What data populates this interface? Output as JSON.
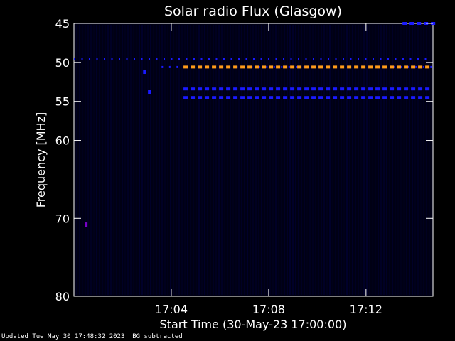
{
  "chart_data": {
    "type": "heatmap",
    "title": "Solar radio Flux (Glasgow)",
    "ylabel": "Frequency [MHz]",
    "xlabel": "Start Time (30-May-23 17:00:00)",
    "y_reversed": true,
    "ylim": [
      45,
      80
    ],
    "yticks": [
      45,
      50,
      55,
      60,
      70,
      80
    ],
    "xlim_minutes": [
      0,
      14.75
    ],
    "xticks": [
      {
        "minute": 4,
        "label": "17:04"
      },
      {
        "minute": 8,
        "label": "17:08"
      },
      {
        "minute": 12,
        "label": "17:12"
      }
    ],
    "background_subtracted": true,
    "colors": {
      "background": "#000000",
      "plot_background": "#000014",
      "noise": "#00003a",
      "blue_line": "#1a1aff",
      "orange_line": "#ff9c1a",
      "purple_spot": "#7a00c8",
      "axis": "#ffffff"
    },
    "emission_lines": [
      {
        "freq_mhz": 49.6,
        "t_start_min": 0.0,
        "t_end_min": 14.75,
        "color": "blue_line",
        "style": "sparse"
      },
      {
        "freq_mhz": 50.6,
        "t_start_min": 3.6,
        "t_end_min": 14.75,
        "color": "blue_line",
        "style": "sparse"
      },
      {
        "freq_mhz": 50.6,
        "t_start_min": 4.5,
        "t_end_min": 14.75,
        "color": "orange_line",
        "style": "dashed"
      },
      {
        "freq_mhz": 53.4,
        "t_start_min": 4.5,
        "t_end_min": 14.75,
        "color": "blue_line",
        "style": "dashed"
      },
      {
        "freq_mhz": 54.5,
        "t_start_min": 4.5,
        "t_end_min": 14.75,
        "color": "blue_line",
        "style": "dashed"
      },
      {
        "freq_mhz": 45.0,
        "t_start_min": 13.5,
        "t_end_min": 14.75,
        "color": "blue_line",
        "style": "dashed"
      }
    ],
    "spots": [
      {
        "freq_mhz": 51.2,
        "t_min": 2.9,
        "color": "blue_line"
      },
      {
        "freq_mhz": 53.8,
        "t_min": 3.1,
        "color": "blue_line"
      },
      {
        "freq_mhz": 70.8,
        "t_min": 0.5,
        "color": "purple_spot"
      }
    ]
  },
  "footer": {
    "updated": "Updated Tue May 30 17:48:32 2023",
    "note": "BG subtracted"
  }
}
